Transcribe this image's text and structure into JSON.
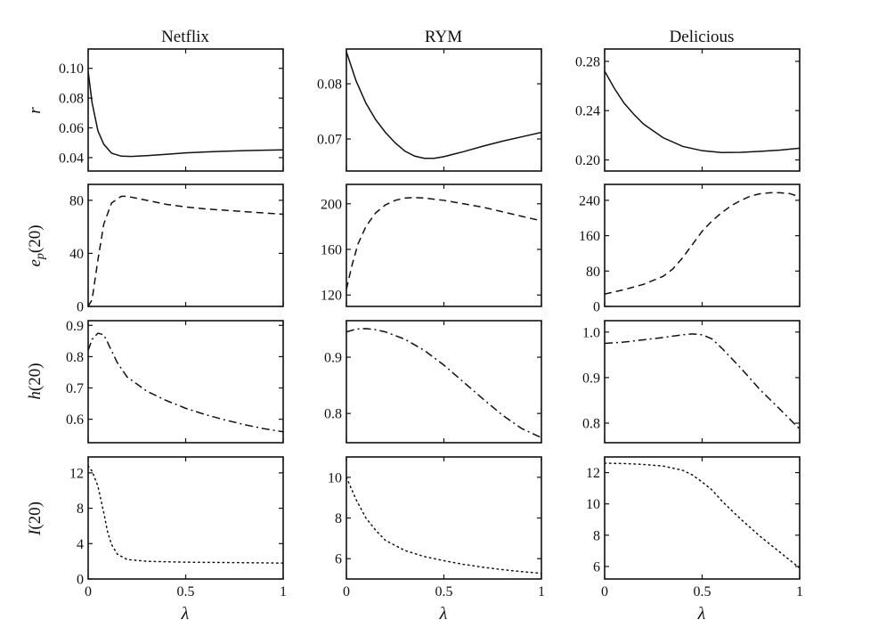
{
  "columns": [
    "Netflix",
    "RYM",
    "Delicious"
  ],
  "row_labels": [
    "r",
    "e_p(20)",
    "h(20)",
    "I(20)"
  ],
  "xlabel": "λ",
  "chart_data": [
    {
      "type": "line",
      "column": "Netflix",
      "ylabel": "r",
      "style": "solid",
      "xlim": [
        0,
        1
      ],
      "ylim": [
        0.031,
        0.113
      ],
      "xticks": [
        0,
        0.5,
        1
      ],
      "xticklabels": [
        "",
        "",
        ""
      ],
      "yticks": [
        0.04,
        0.06,
        0.08,
        0.1
      ],
      "yticklabels": [
        "0.04",
        "0.06",
        "0.08",
        "0.10"
      ],
      "series": [
        {
          "x": [
            0,
            0.02,
            0.05,
            0.08,
            0.12,
            0.17,
            0.22,
            0.3,
            0.4,
            0.5,
            0.6,
            0.7,
            0.8,
            0.9,
            1.0
          ],
          "y": [
            0.098,
            0.077,
            0.058,
            0.049,
            0.043,
            0.041,
            0.0408,
            0.0413,
            0.0422,
            0.0432,
            0.0438,
            0.0443,
            0.0447,
            0.045,
            0.0452
          ]
        }
      ]
    },
    {
      "type": "line",
      "column": "RYM",
      "ylabel": "",
      "style": "solid",
      "xlim": [
        0,
        1
      ],
      "ylim": [
        0.0642,
        0.0863
      ],
      "xticks": [
        0,
        0.5,
        1
      ],
      "xticklabels": [
        "",
        "",
        ""
      ],
      "yticks": [
        0.07,
        0.08
      ],
      "yticklabels": [
        "0.07",
        "0.08"
      ],
      "series": [
        {
          "x": [
            0,
            0.05,
            0.1,
            0.15,
            0.2,
            0.25,
            0.3,
            0.35,
            0.4,
            0.45,
            0.5,
            0.6,
            0.7,
            0.8,
            0.9,
            1.0
          ],
          "y": [
            0.0858,
            0.0805,
            0.0765,
            0.0735,
            0.0712,
            0.0693,
            0.0678,
            0.0669,
            0.0665,
            0.0665,
            0.0668,
            0.0677,
            0.0687,
            0.0696,
            0.0704,
            0.0712
          ]
        }
      ]
    },
    {
      "type": "line",
      "column": "Delicious",
      "ylabel": "",
      "style": "solid",
      "xlim": [
        0,
        1
      ],
      "ylim": [
        0.191,
        0.29
      ],
      "xticks": [
        0,
        0.5,
        1
      ],
      "xticklabels": [
        "",
        "",
        ""
      ],
      "yticks": [
        0.2,
        0.24,
        0.28
      ],
      "yticklabels": [
        "0.20",
        "0.24",
        "0.28"
      ],
      "series": [
        {
          "x": [
            0,
            0.05,
            0.1,
            0.15,
            0.2,
            0.3,
            0.4,
            0.5,
            0.6,
            0.7,
            0.8,
            0.9,
            1.0
          ],
          "y": [
            0.272,
            0.258,
            0.246,
            0.237,
            0.229,
            0.218,
            0.211,
            0.2075,
            0.206,
            0.2062,
            0.207,
            0.208,
            0.2095
          ]
        }
      ]
    },
    {
      "type": "line",
      "column": "Netflix",
      "ylabel": "e_p(20)",
      "style": "dashed",
      "xlim": [
        0,
        1
      ],
      "ylim": [
        0,
        92
      ],
      "xticks": [
        0,
        0.5,
        1
      ],
      "xticklabels": [
        "",
        "",
        ""
      ],
      "yticks": [
        0,
        40,
        80
      ],
      "yticklabels": [
        "0",
        "40",
        "80"
      ],
      "series": [
        {
          "x": [
            0,
            0.02,
            0.05,
            0.08,
            0.12,
            0.17,
            0.2,
            0.3,
            0.4,
            0.5,
            0.6,
            0.7,
            0.8,
            0.9,
            1.0
          ],
          "y": [
            0,
            5,
            35,
            62,
            78,
            83,
            83,
            80,
            77,
            75,
            73.5,
            72.5,
            71.5,
            70.5,
            69.5
          ]
        }
      ]
    },
    {
      "type": "line",
      "column": "RYM",
      "ylabel": "",
      "style": "dashed",
      "xlim": [
        0,
        1
      ],
      "ylim": [
        110,
        217
      ],
      "xticks": [
        0,
        0.5,
        1
      ],
      "xticklabels": [
        "",
        "",
        ""
      ],
      "yticks": [
        120,
        160,
        200
      ],
      "yticklabels": [
        "120",
        "160",
        "200"
      ],
      "series": [
        {
          "x": [
            0,
            0.03,
            0.06,
            0.1,
            0.15,
            0.2,
            0.25,
            0.3,
            0.35,
            0.4,
            0.5,
            0.6,
            0.7,
            0.8,
            0.9,
            1.0
          ],
          "y": [
            125,
            147,
            165,
            180,
            192,
            199,
            203,
            205,
            205.5,
            205,
            203,
            200,
            197,
            193,
            189,
            185
          ]
        }
      ]
    },
    {
      "type": "line",
      "column": "Delicious",
      "ylabel": "",
      "style": "dashed",
      "xlim": [
        0,
        1
      ],
      "ylim": [
        0,
        276
      ],
      "xticks": [
        0,
        0.5,
        1
      ],
      "xticklabels": [
        "",
        "",
        ""
      ],
      "yticks": [
        0,
        80,
        160,
        240
      ],
      "yticklabels": [
        "0",
        "80",
        "160",
        "240"
      ],
      "series": [
        {
          "x": [
            0,
            0.1,
            0.2,
            0.3,
            0.35,
            0.4,
            0.45,
            0.5,
            0.55,
            0.6,
            0.65,
            0.7,
            0.75,
            0.8,
            0.85,
            0.9,
            0.95,
            1.0
          ],
          "y": [
            28,
            38,
            50,
            68,
            85,
            110,
            140,
            170,
            193,
            212,
            228,
            240,
            250,
            255,
            257,
            257,
            255,
            248
          ]
        }
      ]
    },
    {
      "type": "line",
      "column": "Netflix",
      "ylabel": "h(20)",
      "style": "dashdot",
      "xlim": [
        0,
        1
      ],
      "ylim": [
        0.525,
        0.915
      ],
      "xticks": [
        0,
        0.5,
        1
      ],
      "xticklabels": [
        "",
        "",
        ""
      ],
      "yticks": [
        0.6,
        0.7,
        0.8,
        0.9
      ],
      "yticklabels": [
        "0.6",
        "0.7",
        "0.8",
        "0.9"
      ],
      "series": [
        {
          "x": [
            0,
            0.02,
            0.05,
            0.08,
            0.1,
            0.15,
            0.2,
            0.3,
            0.4,
            0.5,
            0.6,
            0.7,
            0.8,
            0.9,
            1.0
          ],
          "y": [
            0.82,
            0.855,
            0.875,
            0.87,
            0.845,
            0.78,
            0.735,
            0.69,
            0.66,
            0.635,
            0.615,
            0.598,
            0.583,
            0.57,
            0.56
          ]
        }
      ]
    },
    {
      "type": "line",
      "column": "RYM",
      "ylabel": "",
      "style": "dashdot",
      "xlim": [
        0,
        1
      ],
      "ylim": [
        0.748,
        0.965
      ],
      "xticks": [
        0,
        0.5,
        1
      ],
      "xticklabels": [
        "",
        "",
        ""
      ],
      "yticks": [
        0.8,
        0.9
      ],
      "yticklabels": [
        "0.8",
        "0.9"
      ],
      "series": [
        {
          "x": [
            0,
            0.05,
            0.1,
            0.15,
            0.2,
            0.3,
            0.4,
            0.5,
            0.6,
            0.7,
            0.8,
            0.9,
            1.0
          ],
          "y": [
            0.945,
            0.95,
            0.951,
            0.949,
            0.945,
            0.932,
            0.912,
            0.886,
            0.856,
            0.826,
            0.797,
            0.773,
            0.757
          ]
        }
      ]
    },
    {
      "type": "line",
      "column": "Delicious",
      "ylabel": "",
      "style": "dashdot",
      "xlim": [
        0,
        1
      ],
      "ylim": [
        0.757,
        1.025
      ],
      "xticks": [
        0,
        0.5,
        1
      ],
      "xticklabels": [
        "",
        "",
        ""
      ],
      "yticks": [
        0.8,
        0.9,
        1.0
      ],
      "yticklabels": [
        "0.8",
        "0.9",
        "1.0"
      ],
      "series": [
        {
          "x": [
            0,
            0.1,
            0.2,
            0.3,
            0.4,
            0.45,
            0.5,
            0.55,
            0.6,
            0.7,
            0.8,
            0.9,
            1.0
          ],
          "y": [
            0.975,
            0.978,
            0.983,
            0.988,
            0.994,
            0.996,
            0.994,
            0.985,
            0.965,
            0.92,
            0.872,
            0.83,
            0.787
          ]
        }
      ]
    },
    {
      "type": "line",
      "column": "Netflix",
      "ylabel": "I(20)",
      "style": "dotted",
      "xlim": [
        0,
        1
      ],
      "ylim": [
        0,
        13.8
      ],
      "xticks": [
        0,
        0.5,
        1
      ],
      "xticklabels": [
        "0",
        "0.5",
        "1"
      ],
      "yticks": [
        0,
        4,
        8,
        12
      ],
      "yticklabels": [
        "0",
        "4",
        "8",
        "12"
      ],
      "series": [
        {
          "x": [
            0,
            0.02,
            0.05,
            0.08,
            0.1,
            0.12,
            0.15,
            0.2,
            0.3,
            0.4,
            0.5,
            0.6,
            0.7,
            0.8,
            0.9,
            1.0
          ],
          "y": [
            12.8,
            12.2,
            10.5,
            7.5,
            5.3,
            3.9,
            2.8,
            2.2,
            2.0,
            1.95,
            1.9,
            1.88,
            1.86,
            1.84,
            1.82,
            1.8
          ]
        }
      ]
    },
    {
      "type": "line",
      "column": "RYM",
      "ylabel": "",
      "style": "dotted",
      "xlim": [
        0,
        1
      ],
      "ylim": [
        5.0,
        11.0
      ],
      "xticks": [
        0,
        0.5,
        1
      ],
      "xticklabels": [
        "0",
        "0.5",
        "1"
      ],
      "yticks": [
        6,
        8,
        10
      ],
      "yticklabels": [
        "6",
        "8",
        "10"
      ],
      "series": [
        {
          "x": [
            0,
            0.05,
            0.1,
            0.15,
            0.2,
            0.3,
            0.4,
            0.5,
            0.6,
            0.7,
            0.8,
            0.9,
            1.0
          ],
          "y": [
            10.0,
            8.9,
            8.0,
            7.4,
            6.9,
            6.4,
            6.1,
            5.9,
            5.72,
            5.58,
            5.46,
            5.36,
            5.28
          ]
        }
      ]
    },
    {
      "type": "line",
      "column": "Delicious",
      "ylabel": "",
      "style": "dotted",
      "xlim": [
        0,
        1
      ],
      "ylim": [
        5.2,
        13.0
      ],
      "xticks": [
        0,
        0.5,
        1
      ],
      "xticklabels": [
        "0",
        "0.5",
        "1"
      ],
      "yticks": [
        6,
        8,
        10,
        12
      ],
      "yticklabels": [
        "6",
        "8",
        "10",
        "12"
      ],
      "series": [
        {
          "x": [
            0,
            0.1,
            0.2,
            0.3,
            0.4,
            0.45,
            0.5,
            0.55,
            0.6,
            0.7,
            0.8,
            0.9,
            1.0
          ],
          "y": [
            12.6,
            12.58,
            12.52,
            12.42,
            12.15,
            11.85,
            11.4,
            10.9,
            10.2,
            9.0,
            7.9,
            6.9,
            5.9
          ]
        }
      ]
    }
  ]
}
